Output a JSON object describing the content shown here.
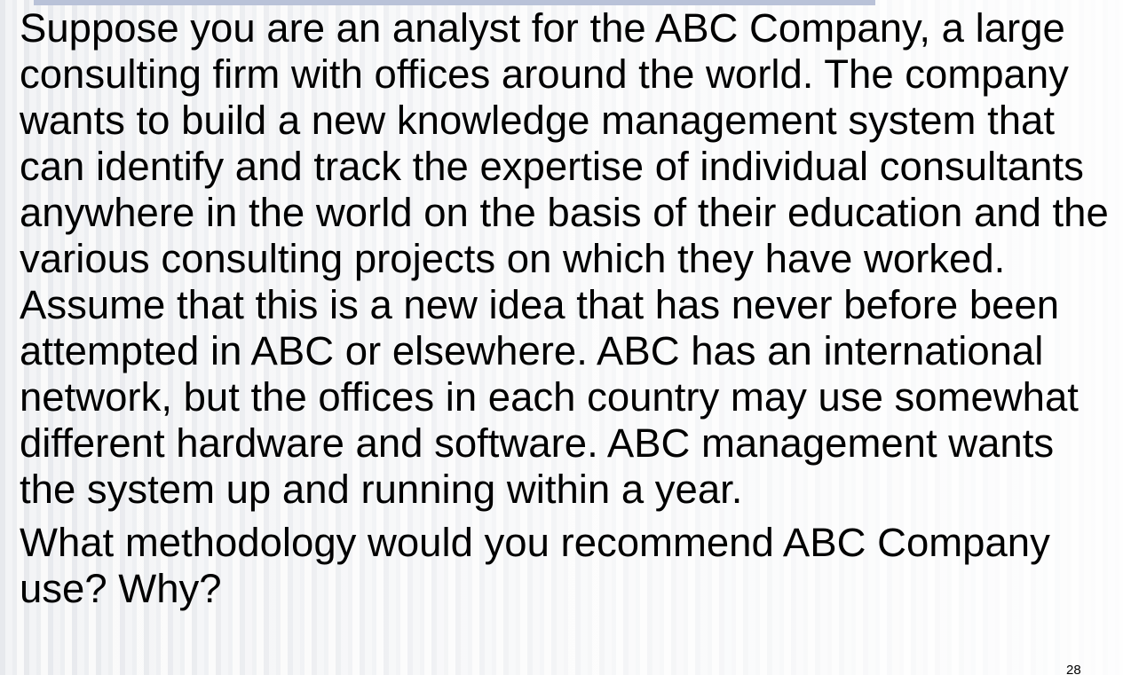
{
  "slide": {
    "paragraphs": [
      "Suppose you are an analyst for the ABC Company, a large consulting firm with offices around the world. The company wants to build a new knowledge management system that can identify and track the expertise of individual consultants anywhere in the world on the basis of their education and the various consulting projects on which they have worked. Assume that this is a new idea that has never before been attempted in ABC or elsewhere. ABC has an international network, but the offices in each country may use somewhat different hardware and software. ABC management wants the system up and running within a year.",
      "What methodology would you recommend ABC Company use? Why?"
    ],
    "page_number": "28"
  },
  "colors": {
    "text": "#000000",
    "top_bar": "#b9c2d8",
    "background_stripe_dark": "#e7e9ed",
    "background_stripe_light": "#fafafa"
  }
}
